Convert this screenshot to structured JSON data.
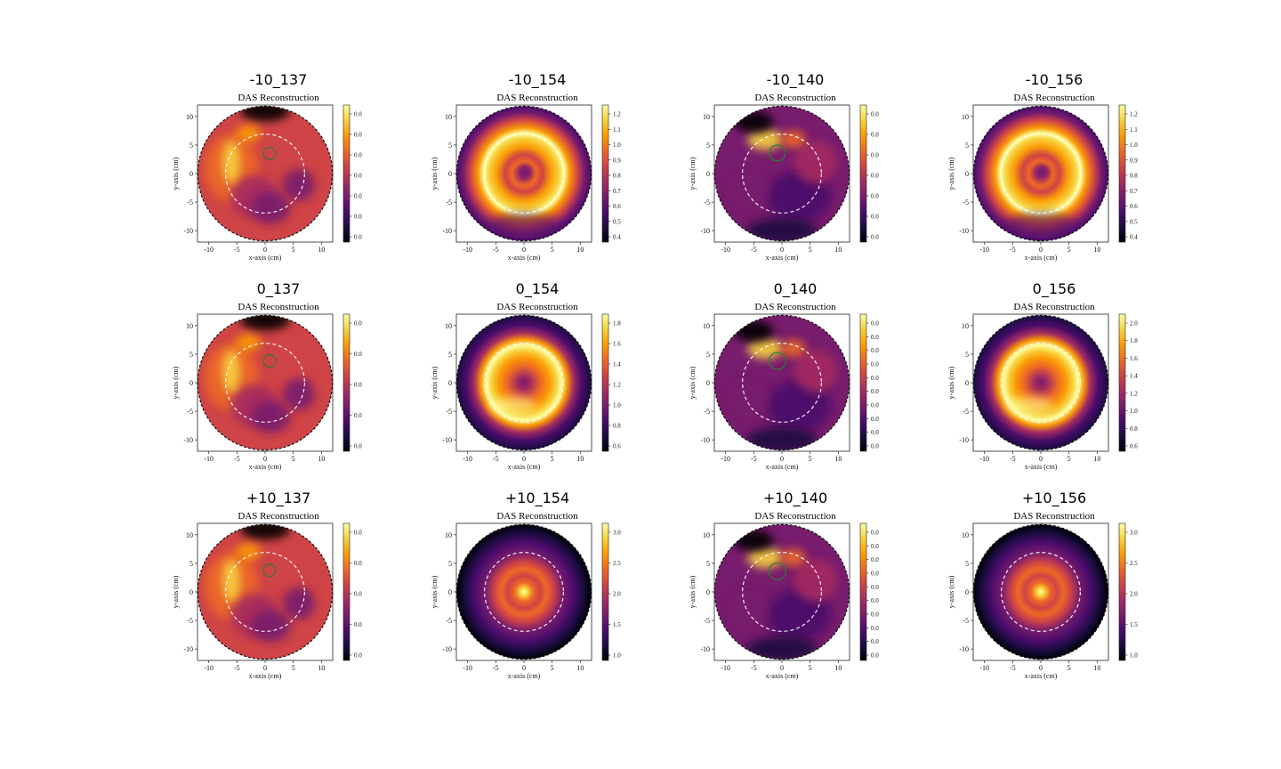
{
  "chart_data": [
    {
      "type": "heatmap",
      "title": "-10_137",
      "subtitle": "DAS Reconstruction",
      "xlabel": "x-axis (cm)",
      "ylabel": "y-axis (cm)",
      "xlim": [
        -12,
        12
      ],
      "ylim": [
        -12,
        12
      ],
      "xticks": [
        "-10",
        "-5",
        "0",
        "5",
        "10"
      ],
      "yticks": [
        "10",
        "5",
        "0",
        "-5",
        "-10"
      ],
      "colorbar_ticks": [
        "0.0",
        "0.0",
        "0.0",
        "0.0",
        "0.0",
        "0.0",
        "0.0"
      ],
      "marker": {
        "x": 0.8,
        "y": 3.5,
        "r": 1.1
      },
      "style": "A"
    },
    {
      "type": "heatmap",
      "title": "-10_154",
      "subtitle": "DAS Reconstruction",
      "xlabel": "x-axis (cm)",
      "ylabel": "y-axis (cm)",
      "xlim": [
        -12,
        12
      ],
      "ylim": [
        -12,
        12
      ],
      "xticks": [
        "-10",
        "-5",
        "0",
        "5",
        "10"
      ],
      "yticks": [
        "10",
        "5",
        "0",
        "-5",
        "-10"
      ],
      "colorbar_ticks": [
        "1.2",
        "1.1",
        "1.0",
        "0.9",
        "0.8",
        "0.7",
        "0.6",
        "0.5",
        "0.4"
      ],
      "style": "B"
    },
    {
      "type": "heatmap",
      "title": "-10_140",
      "subtitle": "DAS Reconstruction",
      "xlabel": "x-axis (cm)",
      "ylabel": "y-axis (cm)",
      "xlim": [
        -12,
        12
      ],
      "ylim": [
        -12,
        12
      ],
      "xticks": [
        "-10",
        "-5",
        "0",
        "5",
        "10"
      ],
      "yticks": [
        "10",
        "5",
        "0",
        "-5",
        "-10"
      ],
      "colorbar_ticks": [
        "0.0",
        "0.0",
        "0.0",
        "0.0",
        "0.0",
        "0.0",
        "0.0"
      ],
      "marker": {
        "x": -0.8,
        "y": 3.6,
        "r": 1.4
      },
      "style": "C"
    },
    {
      "type": "heatmap",
      "title": "-10_156",
      "subtitle": "DAS Reconstruction",
      "xlabel": "x-axis (cm)",
      "ylabel": "y-axis (cm)",
      "xlim": [
        -12,
        12
      ],
      "ylim": [
        -12,
        12
      ],
      "xticks": [
        "-10",
        "-5",
        "0",
        "5",
        "10"
      ],
      "yticks": [
        "10",
        "5",
        "0",
        "-5",
        "-10"
      ],
      "colorbar_ticks": [
        "1.2",
        "1.1",
        "1.0",
        "0.9",
        "0.8",
        "0.7",
        "0.6",
        "0.5",
        "0.4"
      ],
      "style": "B"
    },
    {
      "type": "heatmap",
      "title": "0_137",
      "subtitle": "DAS Reconstruction",
      "xlabel": "x-axis (cm)",
      "ylabel": "y-axis (cm)",
      "xlim": [
        -12,
        12
      ],
      "ylim": [
        -12,
        12
      ],
      "xticks": [
        "-10",
        "-5",
        "0",
        "5",
        "10"
      ],
      "yticks": [
        "10",
        "5",
        "0",
        "-5",
        "-10"
      ],
      "colorbar_ticks": [
        "0.0",
        "0.0",
        "0.0",
        "0.0",
        "0.0"
      ],
      "marker": {
        "x": 0.8,
        "y": 3.8,
        "r": 1.1
      },
      "style": "A"
    },
    {
      "type": "heatmap",
      "title": "0_154",
      "subtitle": "DAS Reconstruction",
      "xlabel": "x-axis (cm)",
      "ylabel": "y-axis (cm)",
      "xlim": [
        -12,
        12
      ],
      "ylim": [
        -12,
        12
      ],
      "xticks": [
        "-10",
        "-5",
        "0",
        "5",
        "10"
      ],
      "yticks": [
        "10",
        "5",
        "0",
        "-5",
        "-10"
      ],
      "colorbar_ticks": [
        "1.8",
        "1.6",
        "1.4",
        "1.2",
        "1.0",
        "0.8",
        "0.6"
      ],
      "style": "D"
    },
    {
      "type": "heatmap",
      "title": "0_140",
      "subtitle": "DAS Reconstruction",
      "xlabel": "x-axis (cm)",
      "ylabel": "y-axis (cm)",
      "xlim": [
        -12,
        12
      ],
      "ylim": [
        -12,
        12
      ],
      "xticks": [
        "-10",
        "-5",
        "0",
        "5",
        "10"
      ],
      "yticks": [
        "10",
        "5",
        "0",
        "-5",
        "-10"
      ],
      "colorbar_ticks": [
        "0.0",
        "0.0",
        "0.0",
        "0.0",
        "0.0",
        "0.0",
        "0.0",
        "0.0",
        "0.0",
        "0.0"
      ],
      "marker": {
        "x": -0.8,
        "y": 3.8,
        "r": 1.5
      },
      "style": "C"
    },
    {
      "type": "heatmap",
      "title": "0_156",
      "subtitle": "DAS Reconstruction",
      "xlabel": "x-axis (cm)",
      "ylabel": "y-axis (cm)",
      "xlim": [
        -12,
        12
      ],
      "ylim": [
        -12,
        12
      ],
      "xticks": [
        "-10",
        "-5",
        "0",
        "5",
        "10"
      ],
      "yticks": [
        "10",
        "5",
        "0",
        "-5",
        "-10"
      ],
      "colorbar_ticks": [
        "2.0",
        "1.8",
        "1.6",
        "1.4",
        "1.2",
        "1.0",
        "0.8",
        "0.6"
      ],
      "style": "D"
    },
    {
      "type": "heatmap",
      "title": "+10_137",
      "subtitle": "DAS Reconstruction",
      "xlabel": "x-axis (cm)",
      "ylabel": "y-axis (cm)",
      "xlim": [
        -12,
        12
      ],
      "ylim": [
        -12,
        12
      ],
      "xticks": [
        "-10",
        "-5",
        "0",
        "5",
        "10"
      ],
      "yticks": [
        "10",
        "5",
        "0",
        "-5",
        "-10"
      ],
      "colorbar_ticks": [
        "0.0",
        "0.0",
        "0.0",
        "0.0",
        "0.0"
      ],
      "marker": {
        "x": 0.8,
        "y": 3.8,
        "r": 1.1
      },
      "style": "A"
    },
    {
      "type": "heatmap",
      "title": "+10_154",
      "subtitle": "DAS Reconstruction",
      "xlabel": "x-axis (cm)",
      "ylabel": "y-axis (cm)",
      "xlim": [
        -12,
        12
      ],
      "ylim": [
        -12,
        12
      ],
      "xticks": [
        "-10",
        "-5",
        "0",
        "5",
        "10"
      ],
      "yticks": [
        "10",
        "5",
        "0",
        "-5",
        "-10"
      ],
      "colorbar_ticks": [
        "3.0",
        "2.5",
        "2.0",
        "1.5",
        "1.0"
      ],
      "style": "E"
    },
    {
      "type": "heatmap",
      "title": "+10_140",
      "subtitle": "DAS Reconstruction",
      "xlabel": "x-axis (cm)",
      "ylabel": "y-axis (cm)",
      "xlim": [
        -12,
        12
      ],
      "ylim": [
        -12,
        12
      ],
      "xticks": [
        "-10",
        "-5",
        "0",
        "5",
        "10"
      ],
      "yticks": [
        "10",
        "5",
        "0",
        "-5",
        "-10"
      ],
      "colorbar_ticks": [
        "0.0",
        "0.0",
        "0.0",
        "0.0",
        "0.0",
        "0.0",
        "0.0",
        "0.0",
        "0.0",
        "0.0"
      ],
      "marker": {
        "x": -0.8,
        "y": 3.6,
        "r": 1.5
      },
      "style": "C"
    },
    {
      "type": "heatmap",
      "title": "+10_156",
      "subtitle": "DAS Reconstruction",
      "xlabel": "x-axis (cm)",
      "ylabel": "y-axis (cm)",
      "xlim": [
        -12,
        12
      ],
      "ylim": [
        -12,
        12
      ],
      "xticks": [
        "-10",
        "-5",
        "0",
        "5",
        "10"
      ],
      "yticks": [
        "10",
        "5",
        "0",
        "-5",
        "-10"
      ],
      "colorbar_ticks": [
        "3.0",
        "2.5",
        "2.0",
        "1.5",
        "1.0"
      ],
      "style": "E"
    }
  ],
  "colormap": [
    "#000004",
    "#1b0c41",
    "#4a0c6b",
    "#781c6d",
    "#a52c60",
    "#cf4446",
    "#ed6925",
    "#fb9b06",
    "#f7d13d",
    "#fcffa4"
  ],
  "marker_color": "#2e7d32",
  "dashed_circle_color": "#ffffff"
}
